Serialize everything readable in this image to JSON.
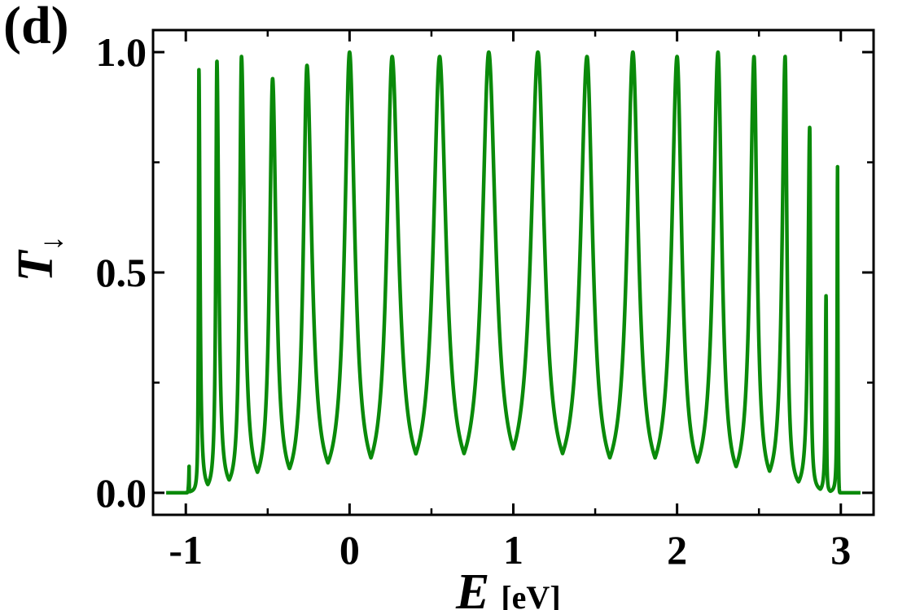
{
  "panel_label": "(d)",
  "chart_data": {
    "type": "line",
    "xlabel": "E",
    "xlabel_unit": "[eV]",
    "ylabel": "T",
    "ylabel_subscript": "↓",
    "xlim": [
      -1.2,
      3.2
    ],
    "ylim": [
      -0.05,
      1.05
    ],
    "x_ticks": [
      -1,
      0,
      1,
      2,
      3
    ],
    "x_tick_labels": [
      "-1",
      "0",
      "1",
      "2",
      "3"
    ],
    "y_ticks": [
      0.0,
      0.5,
      1.0
    ],
    "y_tick_labels": [
      "0.0",
      "0.5",
      "1.0"
    ],
    "grid": false,
    "series": [
      {
        "color": "#0a8a0a",
        "band_edges": [
          -1.0,
          3.0
        ],
        "peaks": [
          {
            "x": -0.98,
            "y": 0.06
          },
          {
            "x": -0.92,
            "y": 0.96
          },
          {
            "x": -0.81,
            "y": 0.98
          },
          {
            "x": -0.66,
            "y": 0.99
          },
          {
            "x": -0.47,
            "y": 0.94
          },
          {
            "x": -0.26,
            "y": 0.97
          },
          {
            "x": 0.0,
            "y": 1.0
          },
          {
            "x": 0.26,
            "y": 0.99
          },
          {
            "x": 0.55,
            "y": 0.99
          },
          {
            "x": 0.85,
            "y": 1.0
          },
          {
            "x": 1.15,
            "y": 1.0
          },
          {
            "x": 1.45,
            "y": 0.99
          },
          {
            "x": 1.73,
            "y": 1.0
          },
          {
            "x": 2.0,
            "y": 0.99
          },
          {
            "x": 2.25,
            "y": 1.0
          },
          {
            "x": 2.47,
            "y": 0.99
          },
          {
            "x": 2.66,
            "y": 0.99
          },
          {
            "x": 2.81,
            "y": 0.83
          },
          {
            "x": 2.91,
            "y": 0.45
          },
          {
            "x": 2.98,
            "y": 0.74
          }
        ],
        "valleys": [
          {
            "x": -0.95,
            "y": 0.01
          },
          {
            "x": -0.86,
            "y": 0.02
          },
          {
            "x": -0.74,
            "y": 0.03
          },
          {
            "x": -0.56,
            "y": 0.05
          },
          {
            "x": -0.37,
            "y": 0.06
          },
          {
            "x": -0.13,
            "y": 0.07
          },
          {
            "x": 0.13,
            "y": 0.08
          },
          {
            "x": 0.41,
            "y": 0.09
          },
          {
            "x": 0.7,
            "y": 0.09
          },
          {
            "x": 1.0,
            "y": 0.1
          },
          {
            "x": 1.3,
            "y": 0.09
          },
          {
            "x": 1.59,
            "y": 0.08
          },
          {
            "x": 1.87,
            "y": 0.08
          },
          {
            "x": 2.13,
            "y": 0.07
          },
          {
            "x": 2.36,
            "y": 0.06
          },
          {
            "x": 2.57,
            "y": 0.05
          },
          {
            "x": 2.74,
            "y": 0.03
          },
          {
            "x": 2.86,
            "y": 0.02
          },
          {
            "x": 2.95,
            "y": 0.01
          }
        ]
      }
    ]
  }
}
